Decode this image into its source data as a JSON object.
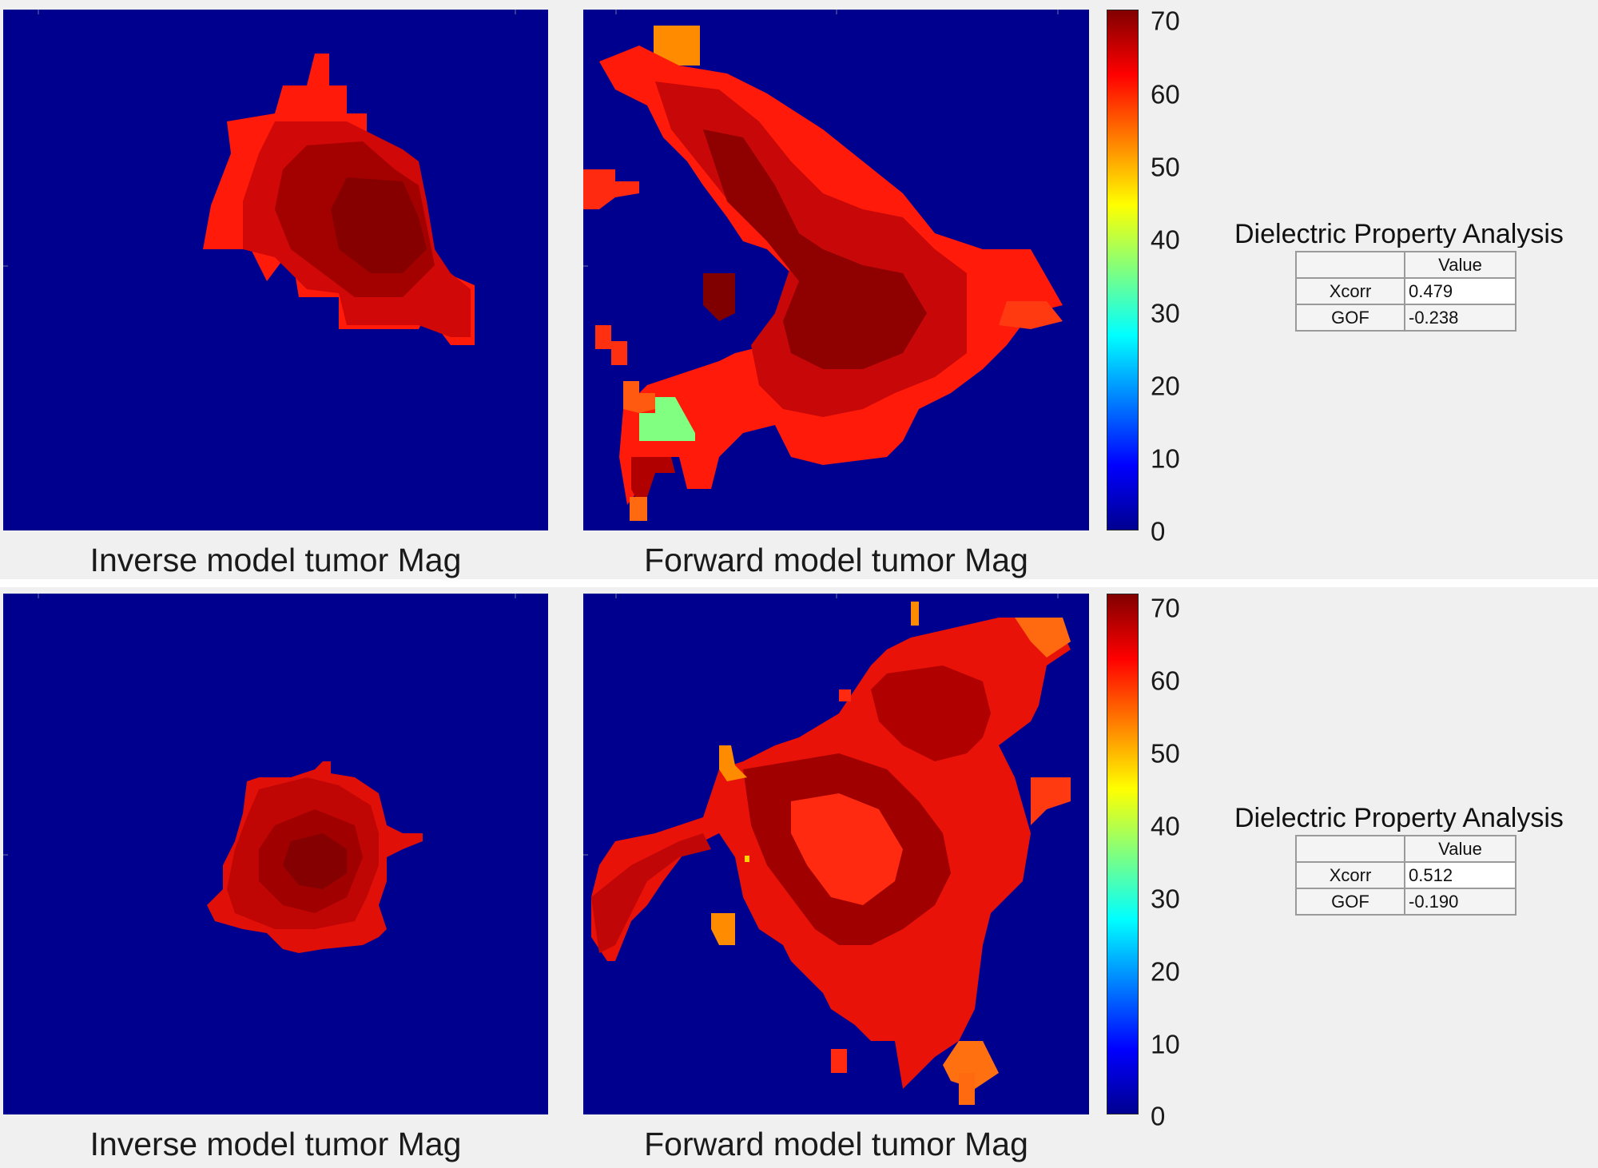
{
  "panels": [
    {
      "inverse_caption": "Inverse model tumor Mag",
      "forward_caption": "Forward model tumor Mag",
      "colorbar_ticks": [
        "70",
        "60",
        "50",
        "40",
        "30",
        "20",
        "10",
        "0"
      ],
      "analysis": {
        "title": "Dielectric Property Analysis",
        "header": "Value",
        "rows": [
          {
            "label": "Xcorr",
            "value": "0.479"
          },
          {
            "label": "GOF",
            "value": "-0.238"
          }
        ]
      }
    },
    {
      "inverse_caption": "Inverse model tumor Mag",
      "forward_caption": "Forward model tumor Mag",
      "colorbar_ticks": [
        "70",
        "60",
        "50",
        "40",
        "30",
        "20",
        "10",
        "0"
      ],
      "analysis": {
        "title": "Dielectric Property Analysis",
        "header": "Value",
        "rows": [
          {
            "label": "Xcorr",
            "value": "0.512"
          },
          {
            "label": "GOF",
            "value": "-0.190"
          }
        ]
      }
    }
  ],
  "colors": {
    "background_map": "#00008f",
    "tumor_dark": "#8b0000",
    "tumor_mid": "#c00000",
    "tumor_red": "#e0100a",
    "tumor_bright": "#ff2010",
    "tumor_orange": "#ff6a00",
    "tumor_green": "#80ff80",
    "colormap": "jet",
    "colorbar_range": [
      0,
      72
    ]
  }
}
